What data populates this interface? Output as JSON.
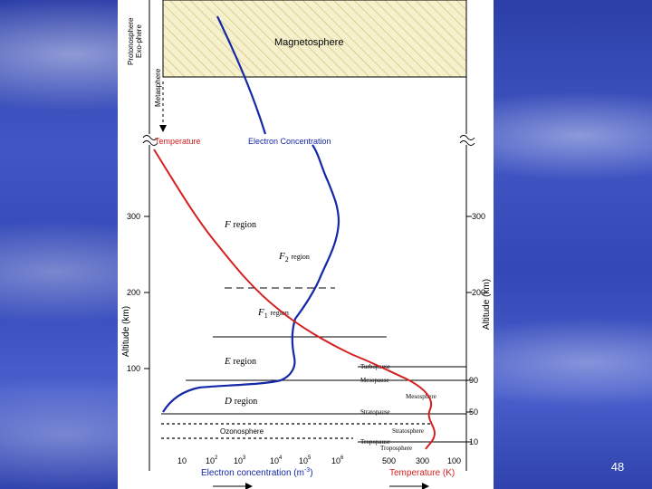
{
  "slide": {
    "page_number": "48"
  },
  "diagram": {
    "regions": {
      "protonosphere": "Protonosphere",
      "exosphere": "Exo-phere",
      "metasphere": "Metasphere",
      "magnetosphere": "Magnetosphere",
      "mesosphere": "Mesosphere",
      "stratosphere": "Stratosphere",
      "troposphere": "Troposphere",
      "ozonosphere": "Ozonosphere"
    },
    "curves": {
      "temperature": "Temperature",
      "electron_concentration": "Electron Concentration"
    },
    "layers": {
      "f": {
        "letter": "F",
        "word": "region"
      },
      "f2": {
        "letter": "F",
        "sub": "2",
        "word": "region"
      },
      "f1": {
        "letter": "F",
        "sub": "1",
        "word": "region"
      },
      "e": {
        "letter": "E",
        "word": "region"
      },
      "d": {
        "letter": "D",
        "word": "region"
      }
    },
    "boundaries": {
      "turbopause": "Turbopause",
      "mesopause": "Mesopause",
      "stratopause": "Stratopause",
      "tropopause": "Tropopause"
    },
    "left_axis": {
      "label": "Altitude (km)",
      "ticks": [
        "300",
        "200",
        "100"
      ]
    },
    "right_axis": {
      "label": "Altitude (km)",
      "ticks": [
        "300",
        "200",
        "90",
        "50",
        "10"
      ]
    },
    "bottom_left_axis": {
      "label": "Electron concentration (m",
      "label_exp": "-3",
      "label_close": ")",
      "ticks": [
        {
          "base": "10",
          "exp": ""
        },
        {
          "base": "10",
          "exp": "2"
        },
        {
          "base": "10",
          "exp": "3"
        },
        {
          "base": "10",
          "exp": "4"
        },
        {
          "base": "10",
          "exp": "5"
        },
        {
          "base": "10",
          "exp": "6"
        }
      ]
    },
    "bottom_right_axis": {
      "label": "Temperature (K)",
      "ticks": [
        "500",
        "300",
        "100"
      ]
    },
    "colors": {
      "temperature": "#d42020",
      "electron": "#1428a8",
      "hatch": "#c8c078",
      "frame": "#000000"
    }
  }
}
